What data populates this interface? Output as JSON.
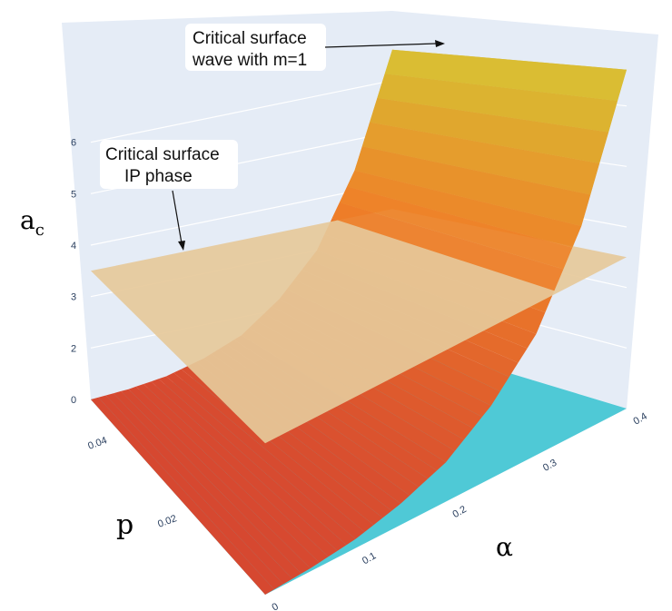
{
  "chart_data": {
    "type": "surface",
    "axes": {
      "x": {
        "title": "α",
        "range": [
          0,
          0.4
        ],
        "ticks": [
          "0",
          "0.1",
          "0.2",
          "0.3",
          "0.4"
        ]
      },
      "y": {
        "title": "p",
        "range": [
          0,
          0.05
        ],
        "ticks": [
          "0.02",
          "0.04"
        ]
      },
      "z": {
        "title": "a",
        "title_subscript": "c",
        "range": [
          1,
          6.7
        ],
        "ticks": [
          "0",
          "2",
          "3",
          "4",
          "5",
          "6"
        ]
      }
    },
    "grid": true,
    "surfaces": [
      {
        "label": "Critical surface wave with m=1",
        "color": "#f0a030",
        "alpha": [
          0,
          0.05,
          0.1,
          0.15,
          0.2,
          0.25,
          0.3,
          0.35,
          0.4
        ],
        "a_c": [
          1.0,
          1.05,
          1.15,
          1.35,
          1.65,
          2.2,
          3.0,
          4.4,
          6.6
        ]
      },
      {
        "label": "Critical surface IP phase",
        "color": "#e6c99a",
        "a_c": 3.5
      },
      {
        "color": "#4fc9d6",
        "a_c": 1.0
      }
    ],
    "annotations": [
      {
        "line1": "Critical surface",
        "line2": "wave with m=1"
      },
      {
        "line1": "Critical surface",
        "line2": "IP phase"
      }
    ]
  }
}
